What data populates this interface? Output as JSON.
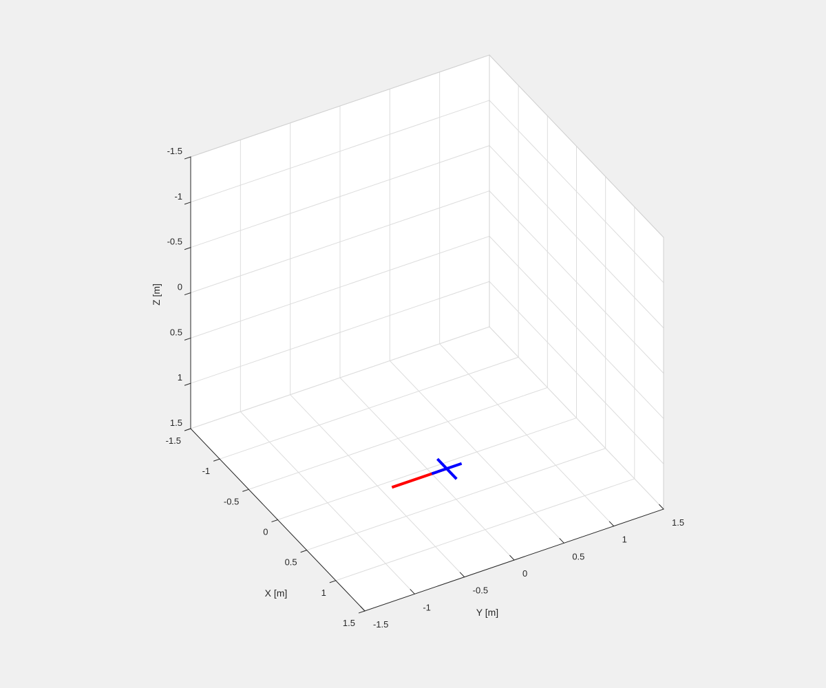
{
  "figure": {
    "background": "#f0f0f0",
    "plot_background": "#ffffff"
  },
  "chart_data": {
    "type": "line3d",
    "title": "",
    "xlabel": "X [m]",
    "ylabel": "Y [m]",
    "zlabel": "Z [m]",
    "xlim": [
      -1.5,
      1.5
    ],
    "ylim": [
      -1.5,
      1.5
    ],
    "zlim": [
      -1.5,
      1.5
    ],
    "z_direction": "reverse",
    "xticks": [
      -1.5,
      -1,
      -0.5,
      0,
      0.5,
      1,
      1.5
    ],
    "yticks": [
      -1.5,
      -1,
      -0.5,
      0,
      0.5,
      1,
      1.5
    ],
    "zticks": [
      -1.5,
      -1,
      -0.5,
      0,
      0.5,
      1,
      1.5
    ],
    "xtick_labels": [
      "-1.5",
      "-1",
      "-0.5",
      "0",
      "0.5",
      "1",
      "1.5"
    ],
    "ytick_labels": [
      "-1.5",
      "-1",
      "-0.5",
      "0",
      "0.5",
      "1",
      "1.5"
    ],
    "ztick_labels": [
      "-1.5",
      "-1",
      "-0.5",
      "0",
      "0.5",
      "1",
      "1.5"
    ],
    "grid": true,
    "series": [
      {
        "color": "#ff0000",
        "linewidth": 4,
        "points": [
          [
            0.08,
            -0.4,
            1.5
          ],
          [
            0.08,
            0.15,
            1.5
          ]
        ]
      },
      {
        "color": "#0000ff",
        "linewidth": 4,
        "points": [
          [
            0.08,
            0.0,
            1.5
          ],
          [
            0.08,
            0.3,
            1.5
          ]
        ]
      },
      {
        "color": "#0000ff",
        "linewidth": 4,
        "points": [
          [
            -0.08,
            0.15,
            1.5
          ],
          [
            0.25,
            0.15,
            1.5
          ]
        ]
      }
    ]
  }
}
